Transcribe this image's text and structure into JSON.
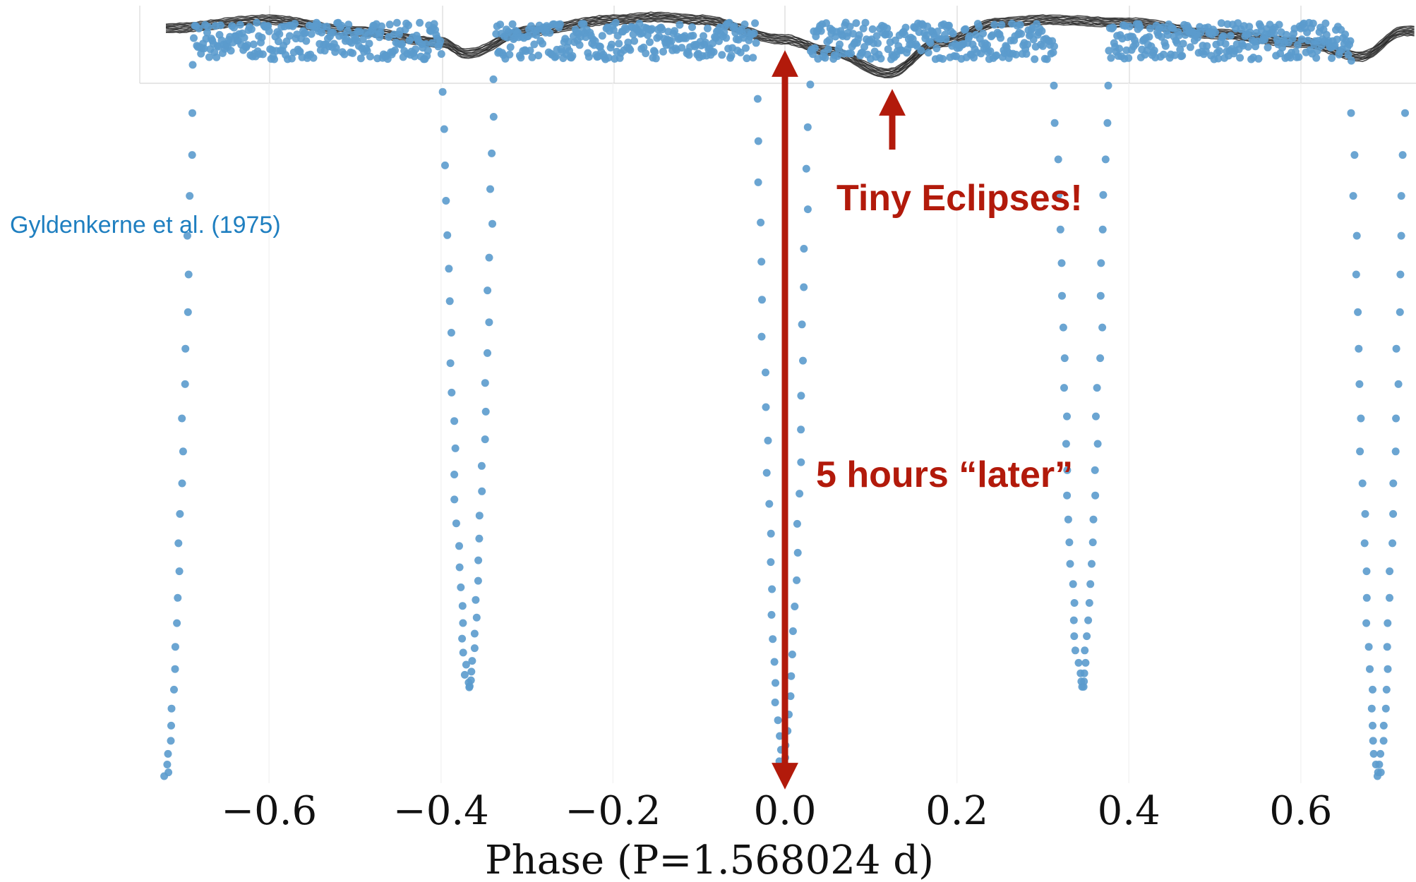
{
  "colors": {
    "data_points": "#5b9bcd",
    "model_curve": "#111111",
    "annotation": "#b21a0b",
    "citation": "#1f7fc0",
    "grid": "#d8d8d8"
  },
  "citation": "Gyldenkerne et al. (1975)",
  "annotations": {
    "tiny_eclipses": "Tiny Eclipses!",
    "later": "5 hours “later”"
  },
  "chart_data": [
    {
      "type": "scatter",
      "name": "folded light curve",
      "xlabel": "Phase (P=1.568024 d)",
      "ylabel": "",
      "xlim": [
        -0.72,
        0.72
      ],
      "xticks": [
        -0.6,
        -0.4,
        -0.2,
        0.0,
        0.2,
        0.4,
        0.6
      ],
      "xtick_labels": [
        "−0.6",
        "−0.4",
        "−0.2",
        "0.0",
        "0.2",
        "0.4",
        "0.6"
      ],
      "ylim": [
        0.0,
        1.05
      ],
      "baseline_flux": 1.0,
      "eclipses": [
        {
          "center": -0.368,
          "min_flux": 0.12
        },
        {
          "center": -0.002,
          "min_flux": 0.0
        },
        {
          "center": 0.345,
          "min_flux": 0.12
        },
        {
          "center": 0.69,
          "min_flux": 0.0
        },
        {
          "center": -0.72,
          "min_flux": 0.0
        }
      ],
      "grid": true
    },
    {
      "type": "line",
      "name": "overlay light curve",
      "x": [
        -0.72,
        -0.6,
        -0.5,
        -0.4,
        -0.37,
        -0.3,
        -0.2,
        -0.15,
        -0.1,
        0.0,
        0.05,
        0.12,
        0.18,
        0.25,
        0.3,
        0.4,
        0.5,
        0.6,
        0.67,
        0.72
      ],
      "y": [
        0.94,
        1.0,
        0.92,
        0.84,
        0.76,
        0.92,
        1.0,
        1.02,
        1.0,
        0.86,
        0.78,
        0.62,
        0.84,
        0.98,
        1.0,
        0.98,
        0.9,
        0.84,
        0.74,
        0.92
      ],
      "dips_at": [
        -0.37,
        0.12,
        0.67
      ]
    }
  ]
}
